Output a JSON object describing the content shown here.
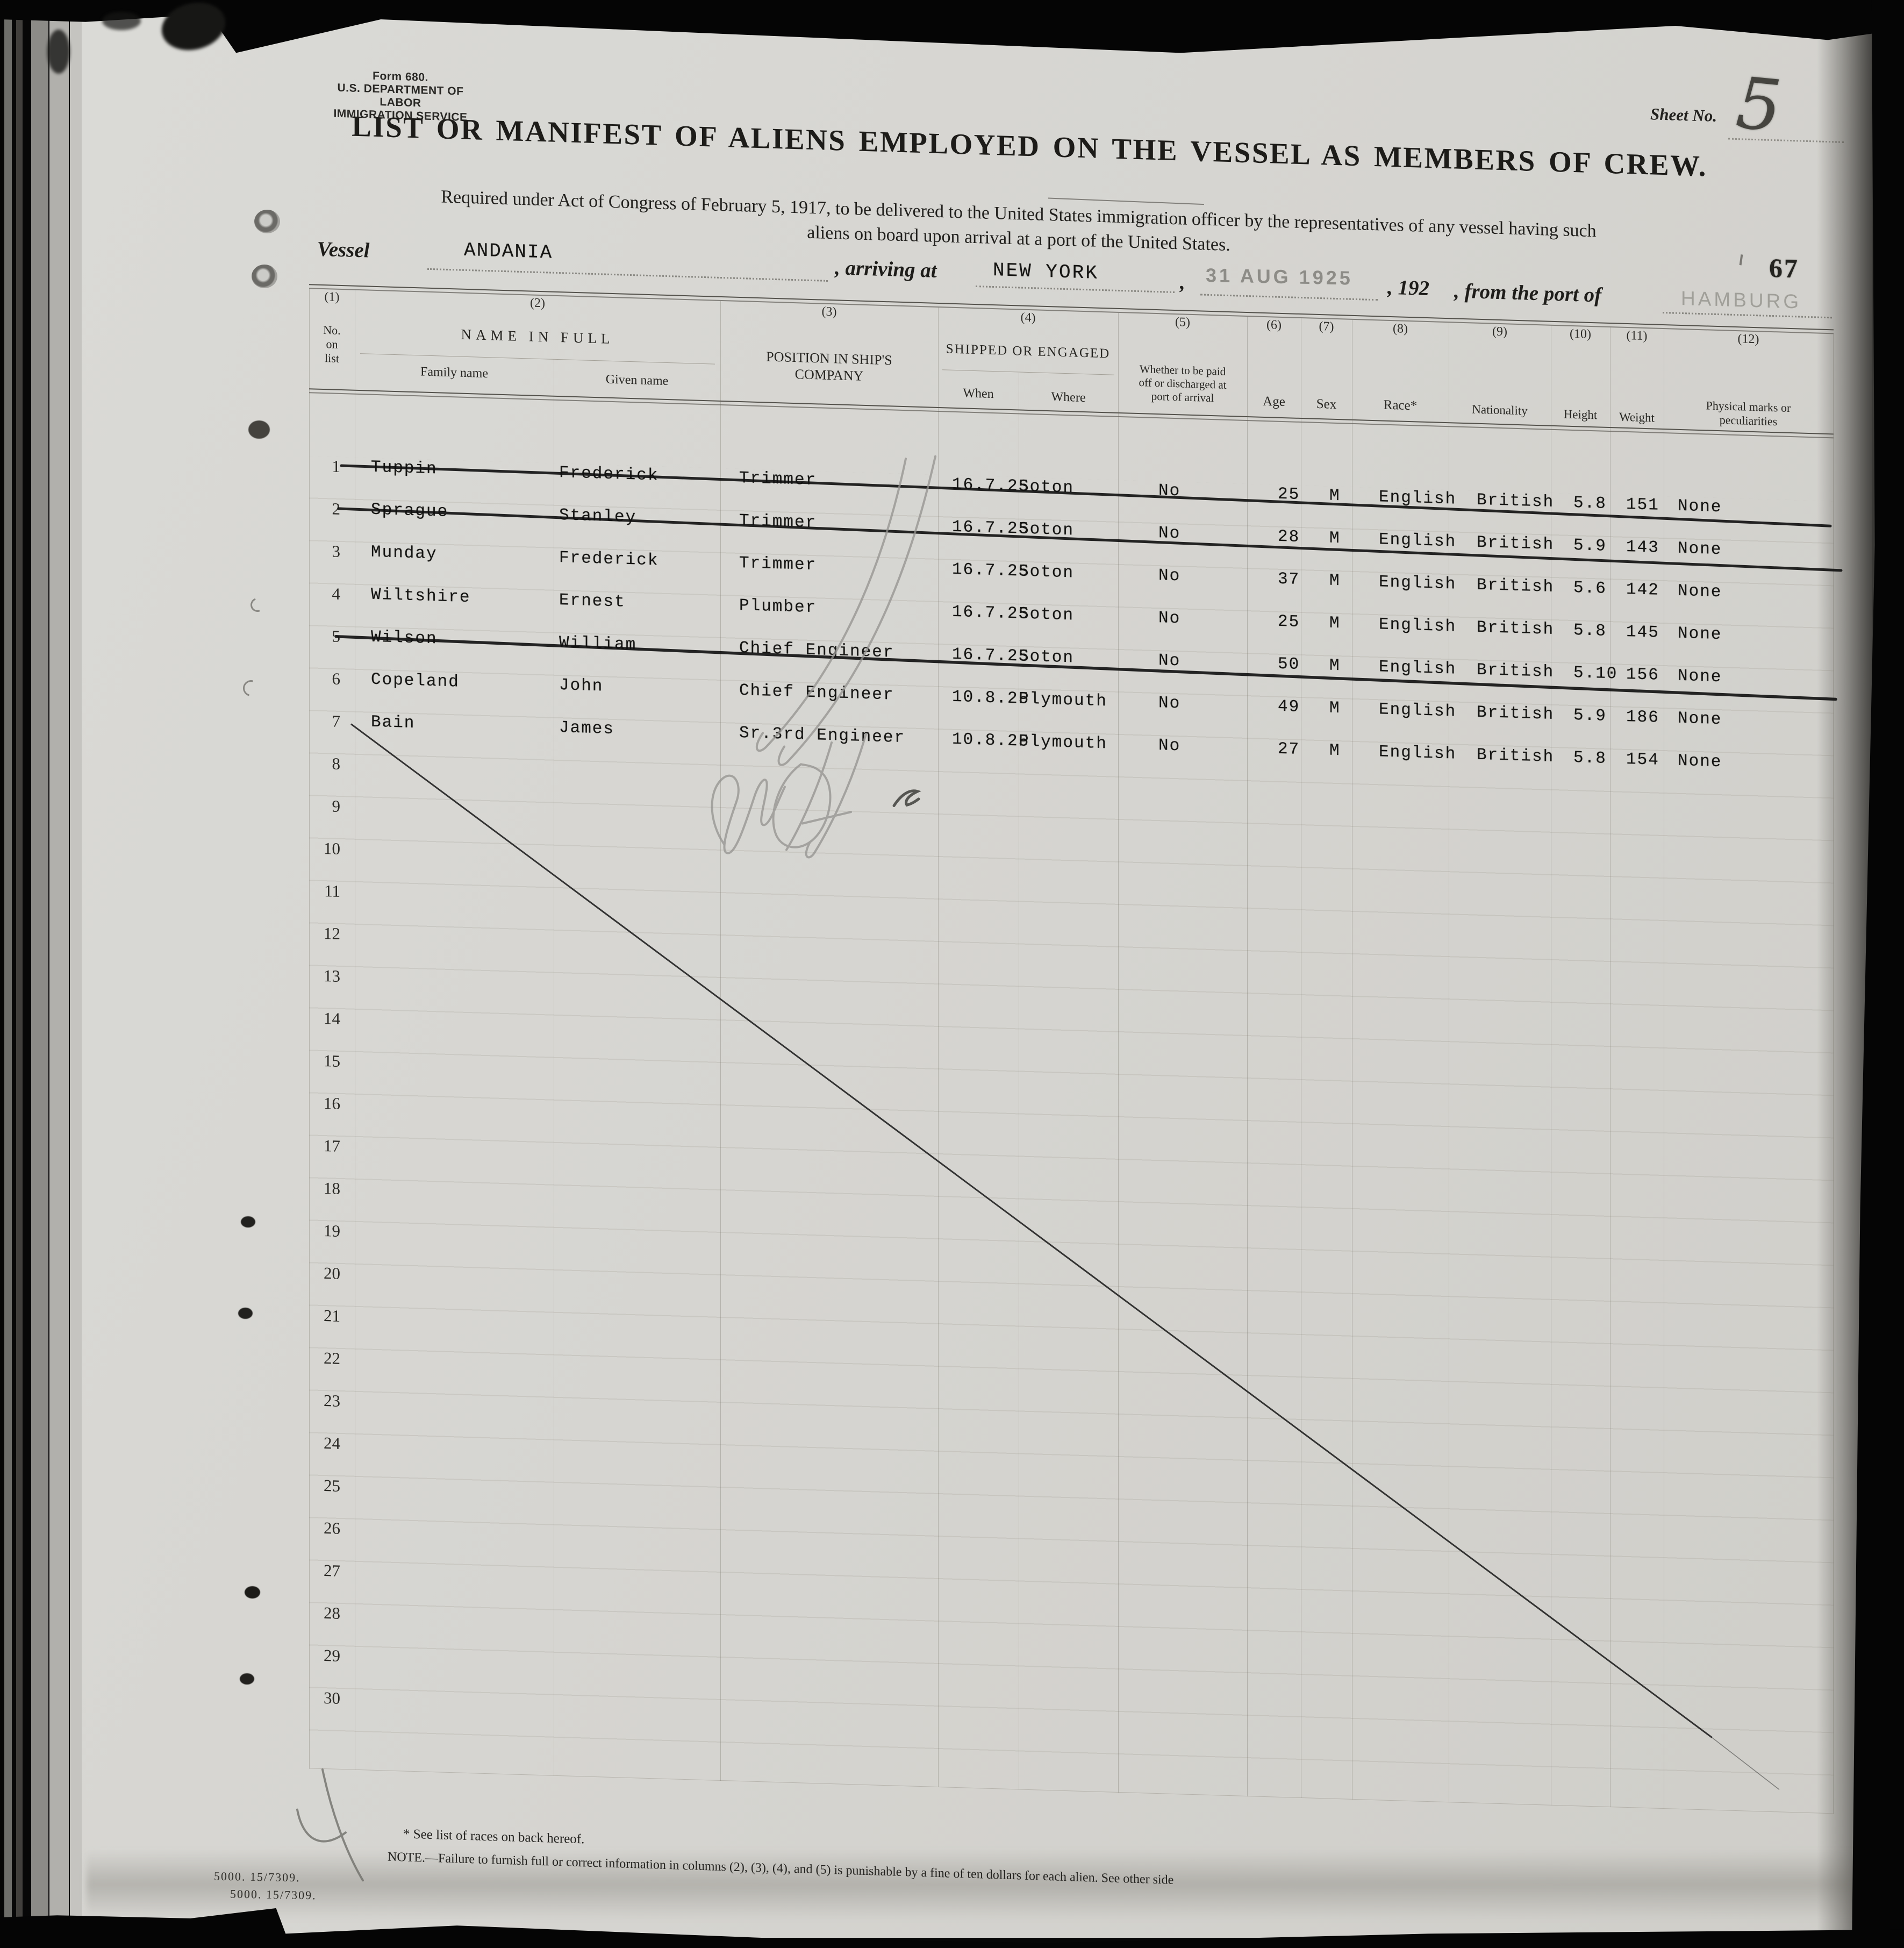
{
  "form": {
    "form_no": "Form 680.",
    "department": "U.S. DEPARTMENT OF LABOR",
    "service": "IMMIGRATION SERVICE"
  },
  "stamps": {
    "sheet_no_label": "Sheet No.",
    "sheet_no": "5",
    "page_number": "67",
    "arrival_date_stamp": "31 AUG 1925",
    "edge_stamps": [
      "5000.  15/7309.",
      "5000.  15/7309."
    ]
  },
  "title": "LIST OR MANIFEST OF ALIENS EMPLOYED ON THE VESSEL AS MEMBERS OF CREW.",
  "subtitle_line1": "Required under Act of Congress of February 5, 1917, to be delivered to the United States immigration officer by the representatives of any vessel having such",
  "subtitle_line2": "aliens on board upon arrival at a port of the United States.",
  "vessel_line": {
    "vessel_label": "Vessel",
    "vessel_name": "ANDANIA",
    "arriving_label": ", arriving at",
    "arrival_port": "NEW YORK",
    "comma": ",",
    "year_blank_label": ", 192",
    "from_port_label": ", from the port of",
    "departure_port": "HAMBURG"
  },
  "table": {
    "col_numbers": [
      "(1)",
      "(2)",
      "(3)",
      "(4)",
      "(5)",
      "(6)",
      "(7)",
      "(8)",
      "(9)",
      "(10)",
      "(11)",
      "(12)"
    ],
    "headers": {
      "no_lines": [
        "No.",
        "on",
        "list"
      ],
      "name_in_full": "NAME IN FULL",
      "family": "Family name",
      "given": "Given name",
      "position": [
        "POSITION IN SHIP'S",
        "COMPANY"
      ],
      "shipped": "SHIPPED OR ENGAGED",
      "when": "When",
      "where": "Where",
      "paid": [
        "Whether to be paid",
        "off or discharged at",
        "port of arrival"
      ],
      "age": "Age",
      "sex": "Sex",
      "race": "Race*",
      "nationality": "Nationality",
      "height": "Height",
      "weight": "Weight",
      "marks": [
        "Physical marks or",
        "peculiarities"
      ]
    },
    "row_numbers": [
      1,
      2,
      3,
      4,
      5,
      6,
      7,
      8,
      9,
      10,
      11,
      12,
      13,
      14,
      15,
      16,
      17,
      18,
      19,
      20,
      21,
      22,
      23,
      24,
      25,
      26,
      27,
      28,
      29,
      30
    ],
    "rows": [
      {
        "no": "1",
        "family": "Tuppin",
        "given": "Frederick",
        "position": "Trimmer",
        "when": "16.7.25",
        "where": "Soton",
        "paid_off": "No",
        "age": "25",
        "sex": "M",
        "race": "English",
        "nationality": "British",
        "height": "5.8",
        "weight": "151",
        "marks": "None",
        "struck": true
      },
      {
        "no": "2",
        "family": "Sprague",
        "given": "Stanley",
        "position": "Trimmer",
        "when": "16.7.25",
        "where": "Soton",
        "paid_off": "No",
        "age": "28",
        "sex": "M",
        "race": "English",
        "nationality": "British",
        "height": "5.9",
        "weight": "143",
        "marks": "None",
        "struck": true
      },
      {
        "no": "3",
        "family": "Munday",
        "given": "Frederick",
        "position": "Trimmer",
        "when": "16.7.25",
        "where": "Soton",
        "paid_off": "No",
        "age": "37",
        "sex": "M",
        "race": "English",
        "nationality": "British",
        "height": "5.6",
        "weight": "142",
        "marks": "None",
        "struck": false
      },
      {
        "no": "4",
        "family": "Wiltshire",
        "given": "Ernest",
        "position": "Plumber",
        "when": "16.7.25",
        "where": "Soton",
        "paid_off": "No",
        "age": "25",
        "sex": "M",
        "race": "English",
        "nationality": "British",
        "height": "5.8",
        "weight": "145",
        "marks": "None",
        "struck": false
      },
      {
        "no": "5",
        "family": "Wilson",
        "given": "William",
        "position": "Chief Engineer",
        "when": "16.7.25",
        "where": "Soton",
        "paid_off": "No",
        "age": "50",
        "sex": "M",
        "race": "English",
        "nationality": "British",
        "height": "5.10",
        "weight": "156",
        "marks": "None",
        "struck": true
      },
      {
        "no": "6",
        "family": "Copeland",
        "given": "John",
        "position": "Chief Engineer",
        "when": "10.8.25",
        "where": "Plymouth",
        "paid_off": "No",
        "age": "49",
        "sex": "M",
        "race": "English",
        "nationality": "British",
        "height": "5.9",
        "weight": "186",
        "marks": "None",
        "struck": false
      },
      {
        "no": "7",
        "family": "Bain",
        "given": "James",
        "position": "Sr.3rd Engineer",
        "when": "10.8.25",
        "where": "Plymouth",
        "paid_off": "No",
        "age": "27",
        "sex": "M",
        "race": "English",
        "nationality": "British",
        "height": "5.8",
        "weight": "154",
        "marks": "None",
        "struck": false
      }
    ]
  },
  "notes": {
    "races_note": "* See list of races on back hereof.",
    "footer_note": "NOTE.—Failure to furnish full or correct information in columns (2), (3), (4), and (5) is punishable by a fine of ten dollars for each alien.   See other side"
  }
}
